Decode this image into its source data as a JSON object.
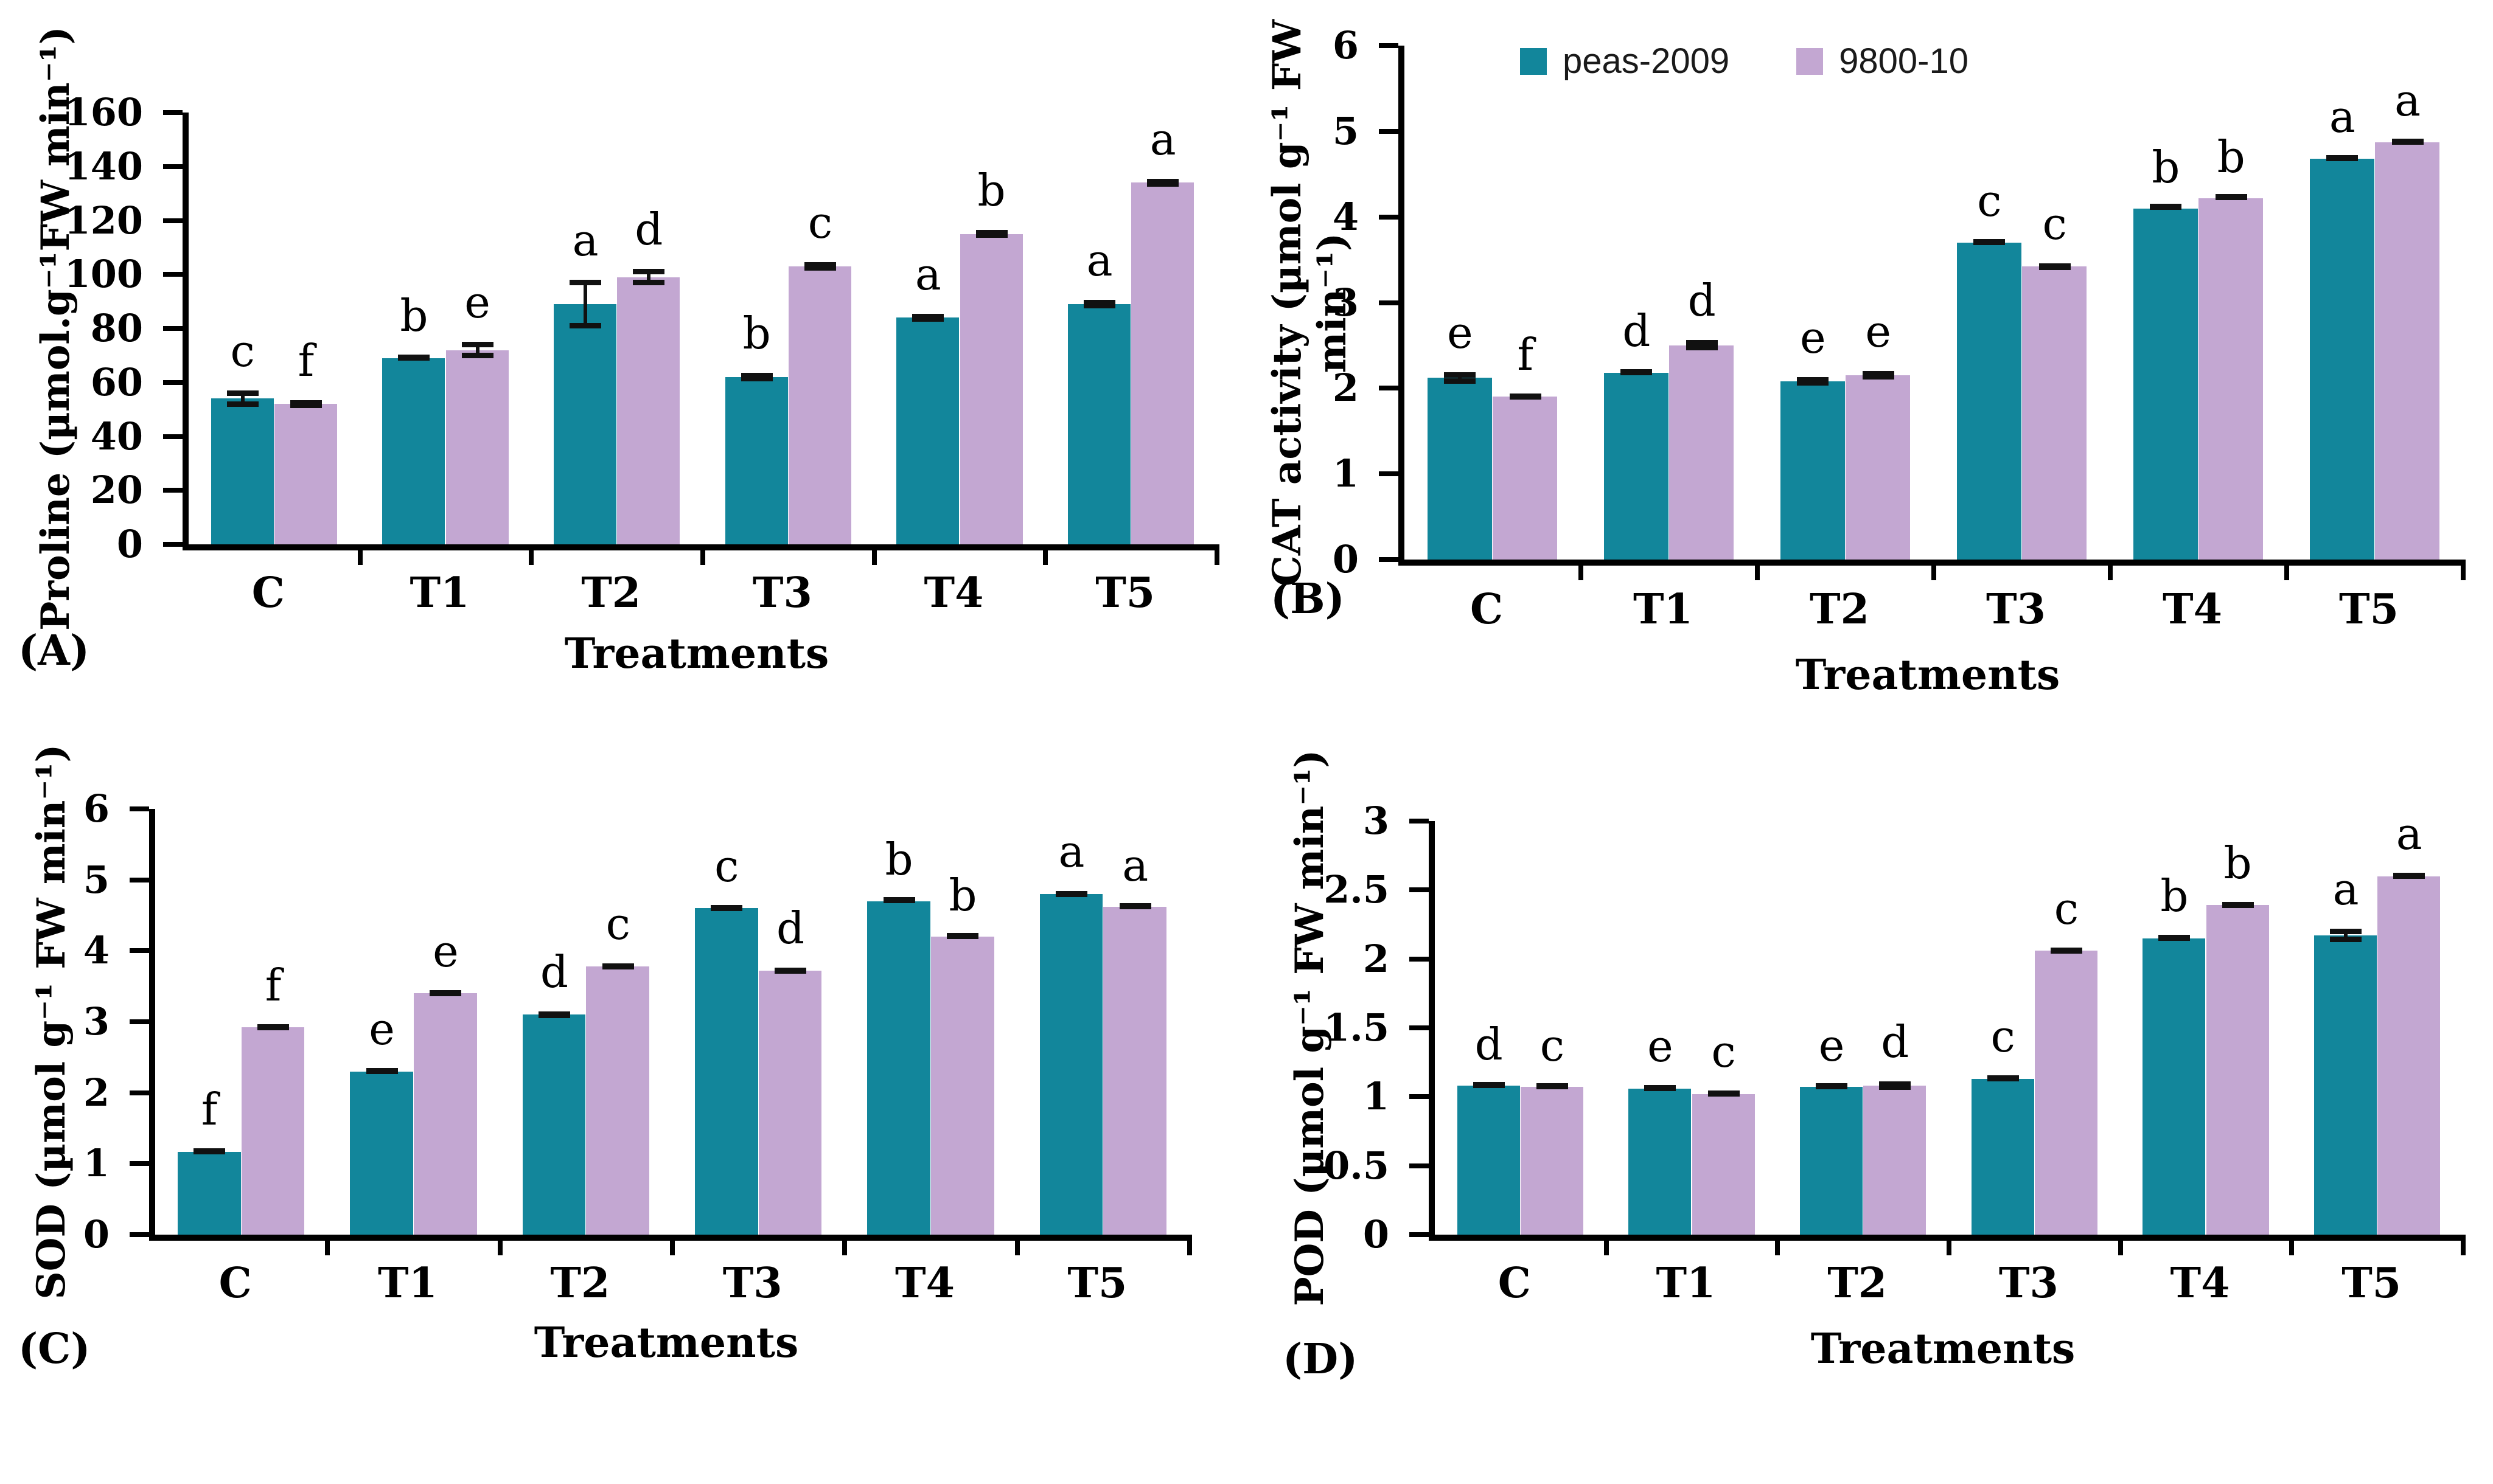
{
  "figure": {
    "background": "#ffffff",
    "x_axis_label": "Treatments",
    "legend": {
      "items": [
        {
          "label": "peas-2009",
          "color": "#12869B"
        },
        {
          "label": "9800-10",
          "color": "#C3A7D2"
        }
      ]
    },
    "colors": {
      "series1": "#12869B",
      "series2": "#C3A7D2",
      "axis": "#000000",
      "error_bar": "#111111"
    }
  },
  "chart_data": [
    {
      "id": "A",
      "panel_label": "(A)",
      "type": "bar",
      "title": "",
      "ylabel": "Proline (µmol.g⁻¹FW min⁻¹)",
      "xlabel": "Treatments",
      "categories": [
        "C",
        "T1",
        "T2",
        "T3",
        "T4",
        "T5"
      ],
      "ylim": [
        0,
        160
      ],
      "yticks": [
        0,
        20,
        40,
        60,
        80,
        100,
        120,
        140,
        160
      ],
      "grid": false,
      "legend_position": "none",
      "series": [
        {
          "name": "peas-2009",
          "values": [
            54,
            69,
            89,
            62,
            84,
            89
          ],
          "errors": [
            3,
            1,
            9,
            1.5,
            1.5,
            1.5
          ],
          "letters": [
            "c",
            "b",
            "a",
            "b",
            "a",
            "a"
          ]
        },
        {
          "name": "9800-10",
          "values": [
            52,
            72,
            99,
            103,
            115,
            134
          ],
          "errors": [
            1.5,
            3,
            3,
            1.5,
            1.5,
            1.5
          ],
          "letters": [
            "f",
            "e",
            "d",
            "c",
            "b",
            "a"
          ]
        }
      ]
    },
    {
      "id": "B",
      "panel_label": "(B)",
      "type": "bar",
      "title": "",
      "ylabel": "CAT activity (µmol g⁻¹ FW min⁻¹)",
      "xlabel": "Treatments",
      "categories": [
        "C",
        "T1",
        "T2",
        "T3",
        "T4",
        "T5"
      ],
      "ylim": [
        0,
        6
      ],
      "yticks": [
        0,
        1,
        2,
        3,
        4,
        5,
        6
      ],
      "grid": false,
      "legend_position": "top-inside",
      "series": [
        {
          "name": "peas-2009",
          "values": [
            2.12,
            2.18,
            2.08,
            3.7,
            4.1,
            4.68
          ],
          "errors": [
            0.07,
            0.03,
            0.05,
            0.03,
            0.02,
            0.03
          ],
          "letters": [
            "e",
            "d",
            "e",
            "c",
            "b",
            "a"
          ]
        },
        {
          "name": "9800-10",
          "values": [
            1.9,
            2.5,
            2.15,
            3.42,
            4.22,
            4.87
          ],
          "errors": [
            0.03,
            0.06,
            0.05,
            0.04,
            0.02,
            0.03
          ],
          "letters": [
            "f",
            "d",
            "e",
            "c",
            "b",
            "a"
          ]
        }
      ]
    },
    {
      "id": "C",
      "panel_label": "(C)",
      "type": "bar",
      "title": "",
      "ylabel": "SOD (µmol g⁻¹ FW min⁻¹)",
      "xlabel": "Treatments",
      "categories": [
        "C",
        "T1",
        "T2",
        "T3",
        "T4",
        "T5"
      ],
      "ylim": [
        0,
        6
      ],
      "yticks": [
        0,
        1,
        2,
        3,
        4,
        5,
        6
      ],
      "grid": false,
      "legend_position": "none",
      "series": [
        {
          "name": "peas-2009",
          "values": [
            1.17,
            2.3,
            3.1,
            4.6,
            4.7,
            4.8
          ],
          "errors": [
            0.04,
            0.04,
            0.05,
            0.04,
            0.03,
            0.04
          ],
          "letters": [
            "f",
            "e",
            "d",
            "c",
            "b",
            "a"
          ]
        },
        {
          "name": "9800-10",
          "values": [
            2.92,
            3.4,
            3.78,
            3.72,
            4.2,
            4.62
          ],
          "errors": [
            0.04,
            0.04,
            0.04,
            0.04,
            0.03,
            0.03
          ],
          "letters": [
            "f",
            "e",
            "c",
            "d",
            "b",
            "a"
          ]
        }
      ]
    },
    {
      "id": "D",
      "panel_label": "(D)",
      "type": "bar",
      "title": "",
      "ylabel": "POD (µmol g⁻¹ FW min⁻¹)",
      "xlabel": "Treatments",
      "categories": [
        "C",
        "T1",
        "T2",
        "T3",
        "T4",
        "T5"
      ],
      "ylim": [
        0,
        3
      ],
      "yticks": [
        0,
        0.5,
        1,
        1.5,
        2,
        2.5,
        3
      ],
      "grid": false,
      "legend_position": "none",
      "series": [
        {
          "name": "peas-2009",
          "values": [
            1.08,
            1.06,
            1.07,
            1.13,
            2.15,
            2.17
          ],
          "errors": [
            0.015,
            0.02,
            0.015,
            0.02,
            0.02,
            0.05
          ],
          "letters": [
            "d",
            "e",
            "e",
            "c",
            "b",
            "a"
          ]
        },
        {
          "name": "9800-10",
          "values": [
            1.07,
            1.02,
            1.08,
            2.06,
            2.39,
            2.6
          ],
          "errors": [
            0.015,
            0.02,
            0.03,
            0.02,
            0.02,
            0.02
          ],
          "letters": [
            "c",
            "c",
            "d",
            "c",
            "b",
            "a"
          ]
        }
      ]
    }
  ]
}
